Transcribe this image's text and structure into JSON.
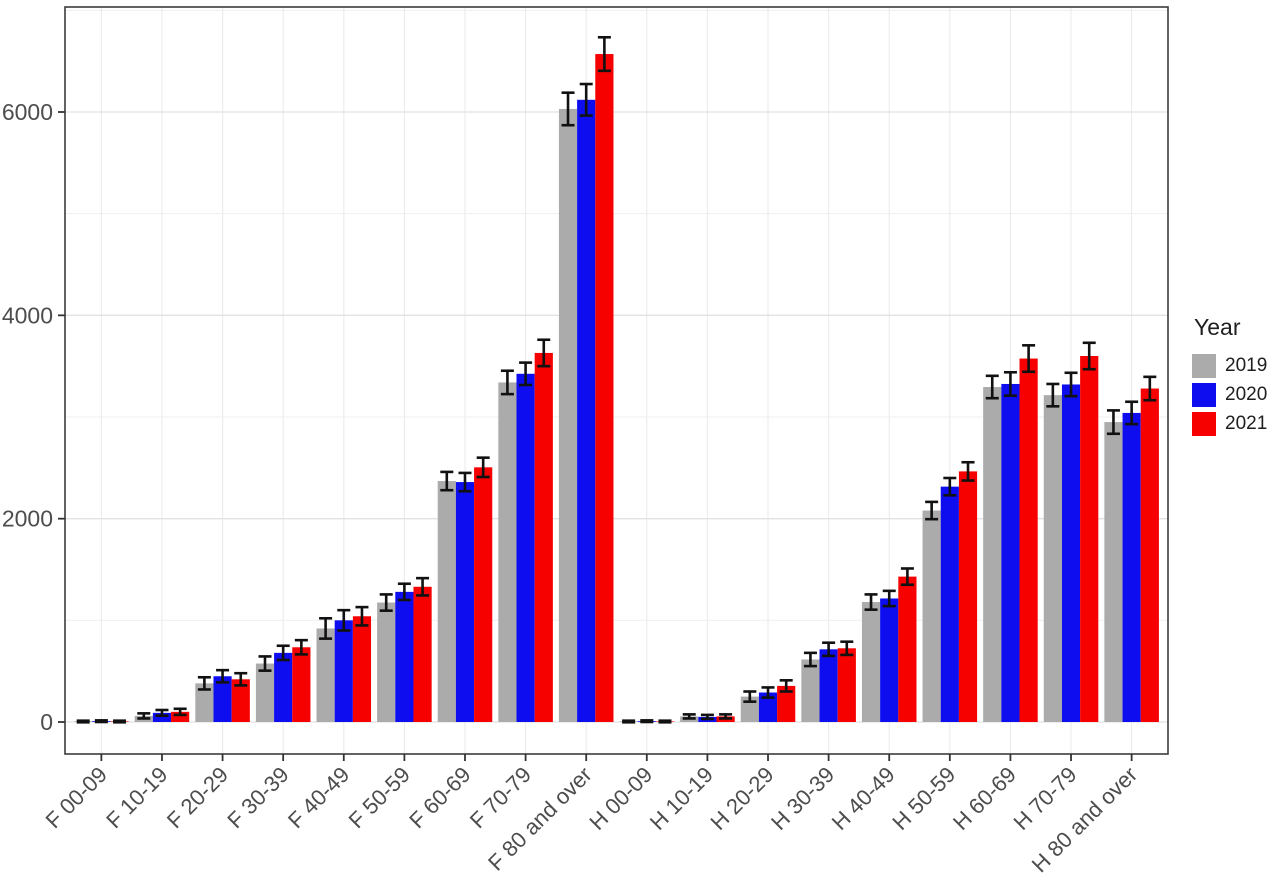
{
  "chart_data": {
    "type": "bar",
    "title": "",
    "xlabel": "",
    "ylabel": "",
    "grid": "on",
    "legend_position": "right",
    "legend_title": "Year",
    "y_ticks": [
      0,
      2000,
      4000,
      6000
    ],
    "y_tick_labels": [
      "0",
      "2000",
      "4000",
      "6000"
    ],
    "ylim": [
      -315,
      7030
    ],
    "minor_gridlines_y": [
      1000,
      3000,
      5000,
      7000
    ],
    "categories": [
      "F 00-09",
      "F 10-19",
      "F 20-29",
      "F 30-39",
      "F 40-49",
      "F 50-59",
      "F 60-69",
      "F 70-79",
      "F 80 and over",
      "H 00-09",
      "H 10-19",
      "H 20-29",
      "H 30-39",
      "H 40-49",
      "H 50-59",
      "H 60-69",
      "H 70-79",
      "H 80 and over"
    ],
    "series": [
      {
        "name": "2019",
        "color": "#ABABAB",
        "values": [
          5,
          60,
          380,
          575,
          920,
          1175,
          2370,
          3340,
          6030,
          5,
          55,
          250,
          615,
          1180,
          2080,
          3295,
          3215,
          2950
        ],
        "errors": [
          8,
          25,
          60,
          70,
          100,
          80,
          90,
          115,
          160,
          8,
          20,
          50,
          65,
          75,
          85,
          110,
          110,
          115
        ]
      },
      {
        "name": "2020",
        "color": "#0D0DF0",
        "values": [
          8,
          90,
          450,
          680,
          1000,
          1280,
          2360,
          3425,
          6120,
          8,
          50,
          290,
          715,
          1215,
          2315,
          3325,
          3320,
          3040
        ],
        "errors": [
          8,
          28,
          60,
          70,
          100,
          80,
          90,
          110,
          155,
          8,
          20,
          50,
          65,
          75,
          85,
          115,
          115,
          110
        ]
      },
      {
        "name": "2021",
        "color": "#F60000",
        "values": [
          5,
          100,
          420,
          735,
          1040,
          1330,
          2505,
          3630,
          6570,
          5,
          55,
          355,
          725,
          1430,
          2465,
          3575,
          3600,
          3280
        ],
        "errors": [
          8,
          30,
          60,
          70,
          90,
          85,
          95,
          130,
          165,
          8,
          20,
          55,
          65,
          80,
          90,
          130,
          130,
          115
        ]
      }
    ]
  }
}
